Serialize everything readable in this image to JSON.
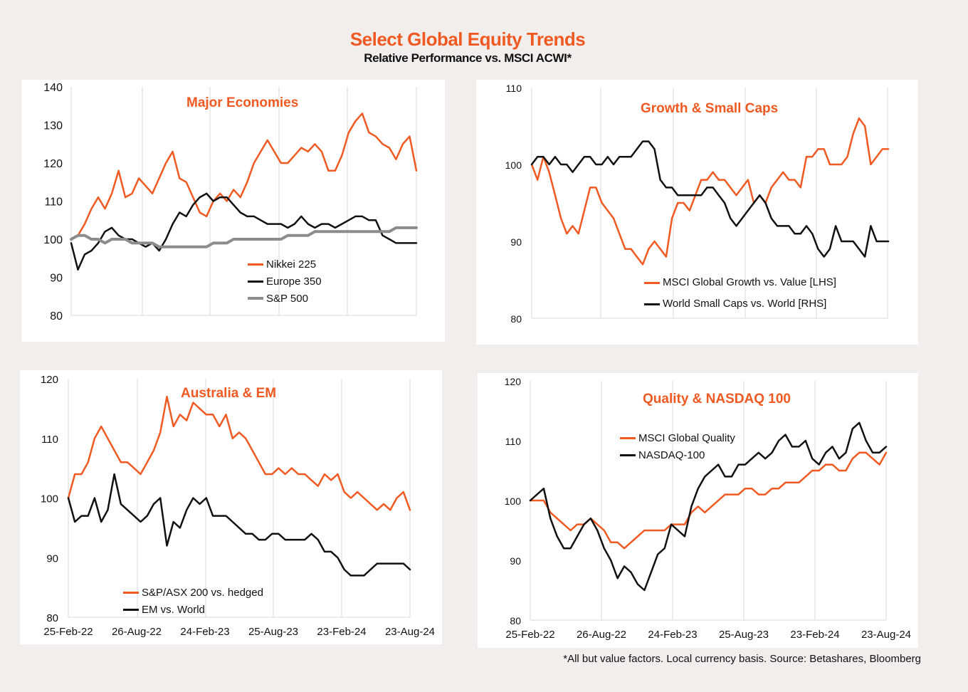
{
  "header": {
    "title": "Select Global Equity Trends",
    "subtitle": "Relative Performance vs. MSCI ACWI*"
  },
  "footer": {
    "note": "*All but value factors. Local currency basis.  Source: Betashares, Bloomberg"
  },
  "chart_data": [
    {
      "type": "line",
      "title": "Major Economies",
      "ylim": [
        80,
        140
      ],
      "yticks": [
        "80",
        "90",
        "100",
        "110",
        "120",
        "130",
        "140"
      ],
      "xticks": [],
      "legend_position": "center-bottom",
      "series": [
        {
          "name": "Nikkei 225",
          "color": "#f05a22",
          "values": [
            100,
            101,
            104,
            108,
            111,
            108,
            112,
            118,
            111,
            112,
            116,
            114,
            112,
            116,
            120,
            123,
            116,
            115,
            111,
            107,
            106,
            110,
            112,
            110,
            113,
            111,
            115,
            120,
            123,
            126,
            123,
            120,
            120,
            122,
            124,
            123,
            125,
            123,
            118,
            118,
            122,
            128,
            131,
            133,
            128,
            127,
            125,
            124,
            121,
            125,
            127,
            118
          ]
        },
        {
          "name": "Europe 350",
          "color": "#111111",
          "values": [
            99,
            92,
            96,
            97,
            99,
            102,
            103,
            101,
            100,
            100,
            99,
            98,
            99,
            97,
            100,
            104,
            107,
            106,
            109,
            111,
            112,
            110,
            111,
            111,
            109,
            107,
            106,
            106,
            105,
            104,
            104,
            104,
            103,
            104,
            106,
            104,
            103,
            104,
            104,
            103,
            104,
            105,
            106,
            106,
            105,
            105,
            101,
            100,
            99,
            99,
            99,
            99
          ]
        },
        {
          "name": "S&P 500",
          "color": "#8c8c8c",
          "values": [
            100,
            101,
            101,
            100,
            100,
            99,
            100,
            100,
            100,
            99,
            99,
            99,
            99,
            98,
            98,
            98,
            98,
            98,
            98,
            98,
            98,
            99,
            99,
            99,
            100,
            100,
            100,
            100,
            100,
            100,
            100,
            100,
            101,
            101,
            101,
            101,
            102,
            102,
            102,
            102,
            102,
            102,
            102,
            102,
            102,
            102,
            102,
            102,
            103,
            103,
            103,
            103
          ]
        }
      ]
    },
    {
      "type": "line",
      "title": "Growth & Small Caps",
      "ylim": [
        80,
        110
      ],
      "yticks": [
        "80",
        "90",
        "100",
        "110"
      ],
      "xticks": [],
      "legend_position": "center-bottom",
      "series": [
        {
          "name": "MSCI Global Growth vs. Value [LHS]",
          "color": "#f05a22",
          "values": [
            100,
            98,
            101,
            99,
            96,
            93,
            91,
            92,
            91,
            94,
            97,
            97,
            95,
            94,
            93,
            91,
            89,
            89,
            88,
            87,
            89,
            90,
            89,
            88,
            93,
            95,
            95,
            94,
            96,
            98,
            98,
            99,
            98,
            98,
            97,
            96,
            97,
            98,
            95,
            96,
            95,
            97,
            98,
            99,
            98,
            98,
            97,
            101,
            101,
            102,
            102,
            100,
            100,
            100,
            101,
            104,
            106,
            105,
            100,
            101,
            102,
            102
          ]
        },
        {
          "name": "World Small Caps vs. World [RHS]",
          "color": "#111111",
          "values": [
            100,
            101,
            101,
            100,
            101,
            100,
            100,
            99,
            100,
            101,
            101,
            100,
            100,
            101,
            100,
            101,
            101,
            101,
            102,
            103,
            103,
            102,
            98,
            97,
            97,
            96,
            96,
            96,
            96,
            96,
            97,
            97,
            96,
            95,
            93,
            92,
            93,
            94,
            95,
            96,
            95,
            93,
            92,
            92,
            92,
            91,
            91,
            92,
            91,
            89,
            88,
            89,
            92,
            90,
            90,
            90,
            89,
            88,
            92,
            90,
            90,
            90
          ]
        }
      ]
    },
    {
      "type": "line",
      "title": "Australia & EM",
      "ylim": [
        80,
        120
      ],
      "yticks": [
        "80",
        "90",
        "100",
        "110",
        "120"
      ],
      "xticks": [
        "25-Feb-22",
        "26-Aug-22",
        "24-Feb-23",
        "25-Aug-23",
        "23-Feb-24",
        "23-Aug-24"
      ],
      "legend_position": "bottom-left",
      "series": [
        {
          "name": "S&P/ASX 200 vs. hedged",
          "color": "#f05a22",
          "values": [
            100,
            104,
            104,
            106,
            110,
            112,
            110,
            108,
            106,
            106,
            105,
            104,
            106,
            108,
            111,
            117,
            112,
            114,
            113,
            116,
            115,
            114,
            114,
            112,
            114,
            110,
            111,
            110,
            108,
            106,
            104,
            104,
            105,
            104,
            105,
            104,
            104,
            103,
            102,
            104,
            103,
            104,
            101,
            100,
            101,
            100,
            99,
            98,
            99,
            98,
            100,
            101,
            98
          ]
        },
        {
          "name": "EM vs. World",
          "color": "#111111",
          "values": [
            100,
            96,
            97,
            97,
            100,
            96,
            98,
            104,
            99,
            98,
            97,
            96,
            97,
            99,
            100,
            92,
            96,
            95,
            98,
            100,
            99,
            100,
            97,
            97,
            97,
            96,
            95,
            94,
            94,
            93,
            93,
            94,
            94,
            93,
            93,
            93,
            93,
            94,
            93,
            91,
            91,
            90,
            88,
            87,
            87,
            87,
            88,
            89,
            89,
            89,
            89,
            89,
            88
          ]
        }
      ]
    },
    {
      "type": "line",
      "title": "Quality & NASDAQ 100",
      "ylim": [
        80,
        120
      ],
      "yticks": [
        "80",
        "90",
        "100",
        "110",
        "120"
      ],
      "xticks": [
        "25-Feb-22",
        "26-Aug-22",
        "24-Feb-23",
        "25-Aug-23",
        "23-Feb-24",
        "23-Aug-24"
      ],
      "legend_position": "top-left",
      "series": [
        {
          "name": "MSCI Global Quality",
          "color": "#f05a22",
          "values": [
            100,
            100,
            100,
            98,
            97,
            96,
            95,
            96,
            96,
            97,
            96,
            95,
            93,
            93,
            92,
            93,
            94,
            95,
            95,
            95,
            95,
            96,
            96,
            96,
            98,
            99,
            98,
            99,
            100,
            101,
            101,
            101,
            102,
            102,
            101,
            101,
            102,
            102,
            103,
            103,
            103,
            104,
            105,
            105,
            106,
            106,
            105,
            105,
            107,
            108,
            108,
            107,
            106,
            108
          ]
        },
        {
          "name": "NASDAQ-100",
          "color": "#111111",
          "values": [
            100,
            101,
            102,
            97,
            94,
            92,
            92,
            94,
            96,
            97,
            95,
            92,
            90,
            87,
            89,
            88,
            86,
            85,
            88,
            91,
            92,
            96,
            95,
            94,
            99,
            102,
            104,
            105,
            106,
            104,
            104,
            106,
            106,
            107,
            108,
            107,
            108,
            110,
            111,
            109,
            109,
            110,
            107,
            106,
            108,
            109,
            107,
            108,
            112,
            113,
            110,
            108,
            108,
            109
          ]
        }
      ]
    }
  ]
}
